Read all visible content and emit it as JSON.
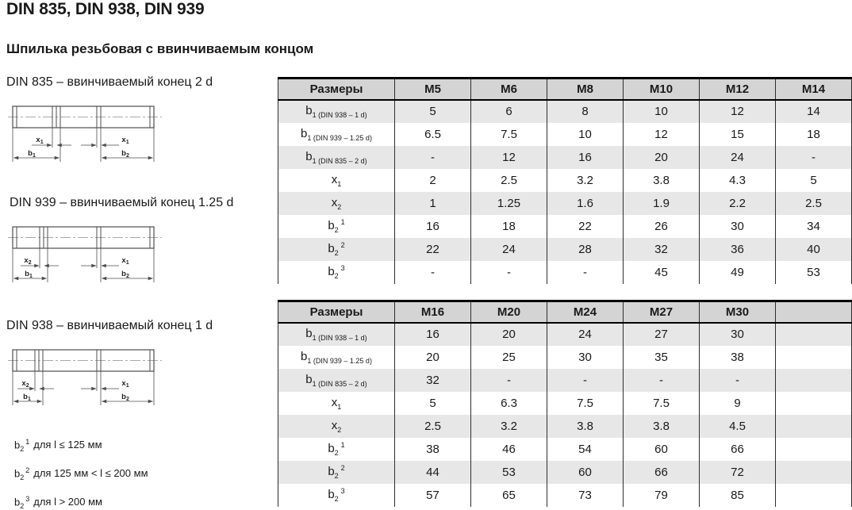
{
  "page": {
    "title": "DIN 835, DIN 938, DIN 939",
    "subtitle": "Шпилька резьбовая с ввинчиваемым концом"
  },
  "colors": {
    "table_header_bg": "#d4d4d4",
    "row_stripe_bg": "#e7e7e7",
    "table_grid": "#2e2e2e",
    "text": "#1a1a1a"
  },
  "diagrams": [
    {
      "caption": "DIN 835 – ввинчиваемый конец 2 d",
      "dims": {
        "left": {
          "base": "x",
          "sub": "1"
        },
        "right": {
          "base": "x",
          "sub": "1"
        },
        "b_left": {
          "base": "b",
          "sub": "1"
        },
        "b_right": {
          "base": "b",
          "sub": "2"
        }
      }
    },
    {
      "caption": "DIN 939 – ввинчиваемый конец 1.25 d",
      "dims": {
        "left": {
          "base": "x",
          "sub": "2"
        },
        "right": {
          "base": "x",
          "sub": "1"
        },
        "b_left": {
          "base": "b",
          "sub": "1"
        },
        "b_right": {
          "base": "b",
          "sub": "2"
        }
      }
    },
    {
      "caption": "DIN 938 – ввинчиваемый конец 1 d",
      "dims": {
        "left": {
          "base": "x",
          "sub": "2"
        },
        "right": {
          "base": "x",
          "sub": "1"
        },
        "b_left": {
          "base": "b",
          "sub": "1"
        },
        "b_right": {
          "base": "b",
          "sub": "2"
        }
      }
    }
  ],
  "footnotes": [
    {
      "base": "b",
      "sub": "2",
      "sup": "1",
      "text": "для l ≤ 125 мм"
    },
    {
      "base": "b",
      "sub": "2",
      "sup": "2",
      "text": "для 125 мм < l ≤ 200 мм"
    },
    {
      "base": "b",
      "sub": "2",
      "sup": "3",
      "text": "для l > 200 мм"
    }
  ],
  "tables": [
    {
      "header_label": "Размеры",
      "columns": [
        "M5",
        "M6",
        "M8",
        "M10",
        "M12",
        "M14"
      ],
      "rows": [
        {
          "label": {
            "base": "b",
            "sub": "1 (DIN 938 – 1 d)",
            "sup": ""
          },
          "values": [
            "5",
            "6",
            "8",
            "10",
            "12",
            "14"
          ]
        },
        {
          "label": {
            "base": "b",
            "sub": "1 (DIN 939 – 1.25 d)",
            "sup": ""
          },
          "values": [
            "6.5",
            "7.5",
            "10",
            "12",
            "15",
            "18"
          ]
        },
        {
          "label": {
            "base": "b",
            "sub": "1 (DIN 835 – 2 d)",
            "sup": ""
          },
          "values": [
            "-",
            "12",
            "16",
            "20",
            "24",
            "-"
          ]
        },
        {
          "label": {
            "base": "x",
            "sub": "1",
            "sup": ""
          },
          "values": [
            "2",
            "2.5",
            "3.2",
            "3.8",
            "4.3",
            "5"
          ]
        },
        {
          "label": {
            "base": "x",
            "sub": "2",
            "sup": ""
          },
          "values": [
            "1",
            "1.25",
            "1.6",
            "1.9",
            "2.2",
            "2.5"
          ]
        },
        {
          "label": {
            "base": "b",
            "sub": "2",
            "sup": "1"
          },
          "values": [
            "16",
            "18",
            "22",
            "26",
            "30",
            "34"
          ]
        },
        {
          "label": {
            "base": "b",
            "sub": "2",
            "sup": "2"
          },
          "values": [
            "22",
            "24",
            "28",
            "32",
            "36",
            "40"
          ]
        },
        {
          "label": {
            "base": "b",
            "sub": "2",
            "sup": "3"
          },
          "values": [
            "-",
            "-",
            "-",
            "45",
            "49",
            "53"
          ]
        }
      ]
    },
    {
      "header_label": "Размеры",
      "columns": [
        "M16",
        "M20",
        "M24",
        "M27",
        "M30",
        ""
      ],
      "rows": [
        {
          "label": {
            "base": "b",
            "sub": "1 (DIN 938 – 1 d)",
            "sup": ""
          },
          "values": [
            "16",
            "20",
            "24",
            "27",
            "30",
            ""
          ]
        },
        {
          "label": {
            "base": "b",
            "sub": "1 (DIN 939 – 1.25 d)",
            "sup": ""
          },
          "values": [
            "20",
            "25",
            "30",
            "35",
            "38",
            ""
          ]
        },
        {
          "label": {
            "base": "b",
            "sub": "1 (DIN 835 – 2 d)",
            "sup": ""
          },
          "values": [
            "32",
            "-",
            "-",
            "-",
            "-",
            ""
          ]
        },
        {
          "label": {
            "base": "x",
            "sub": "1",
            "sup": ""
          },
          "values": [
            "5",
            "6.3",
            "7.5",
            "7.5",
            "9",
            ""
          ]
        },
        {
          "label": {
            "base": "x",
            "sub": "2",
            "sup": ""
          },
          "values": [
            "2.5",
            "3.2",
            "3.8",
            "3.8",
            "4.5",
            ""
          ]
        },
        {
          "label": {
            "base": "b",
            "sub": "2",
            "sup": "1"
          },
          "values": [
            "38",
            "46",
            "54",
            "60",
            "66",
            ""
          ]
        },
        {
          "label": {
            "base": "b",
            "sub": "2",
            "sup": "2"
          },
          "values": [
            "44",
            "53",
            "60",
            "66",
            "72",
            ""
          ]
        },
        {
          "label": {
            "base": "b",
            "sub": "2",
            "sup": "3"
          },
          "values": [
            "57",
            "65",
            "73",
            "79",
            "85",
            ""
          ]
        }
      ]
    }
  ]
}
